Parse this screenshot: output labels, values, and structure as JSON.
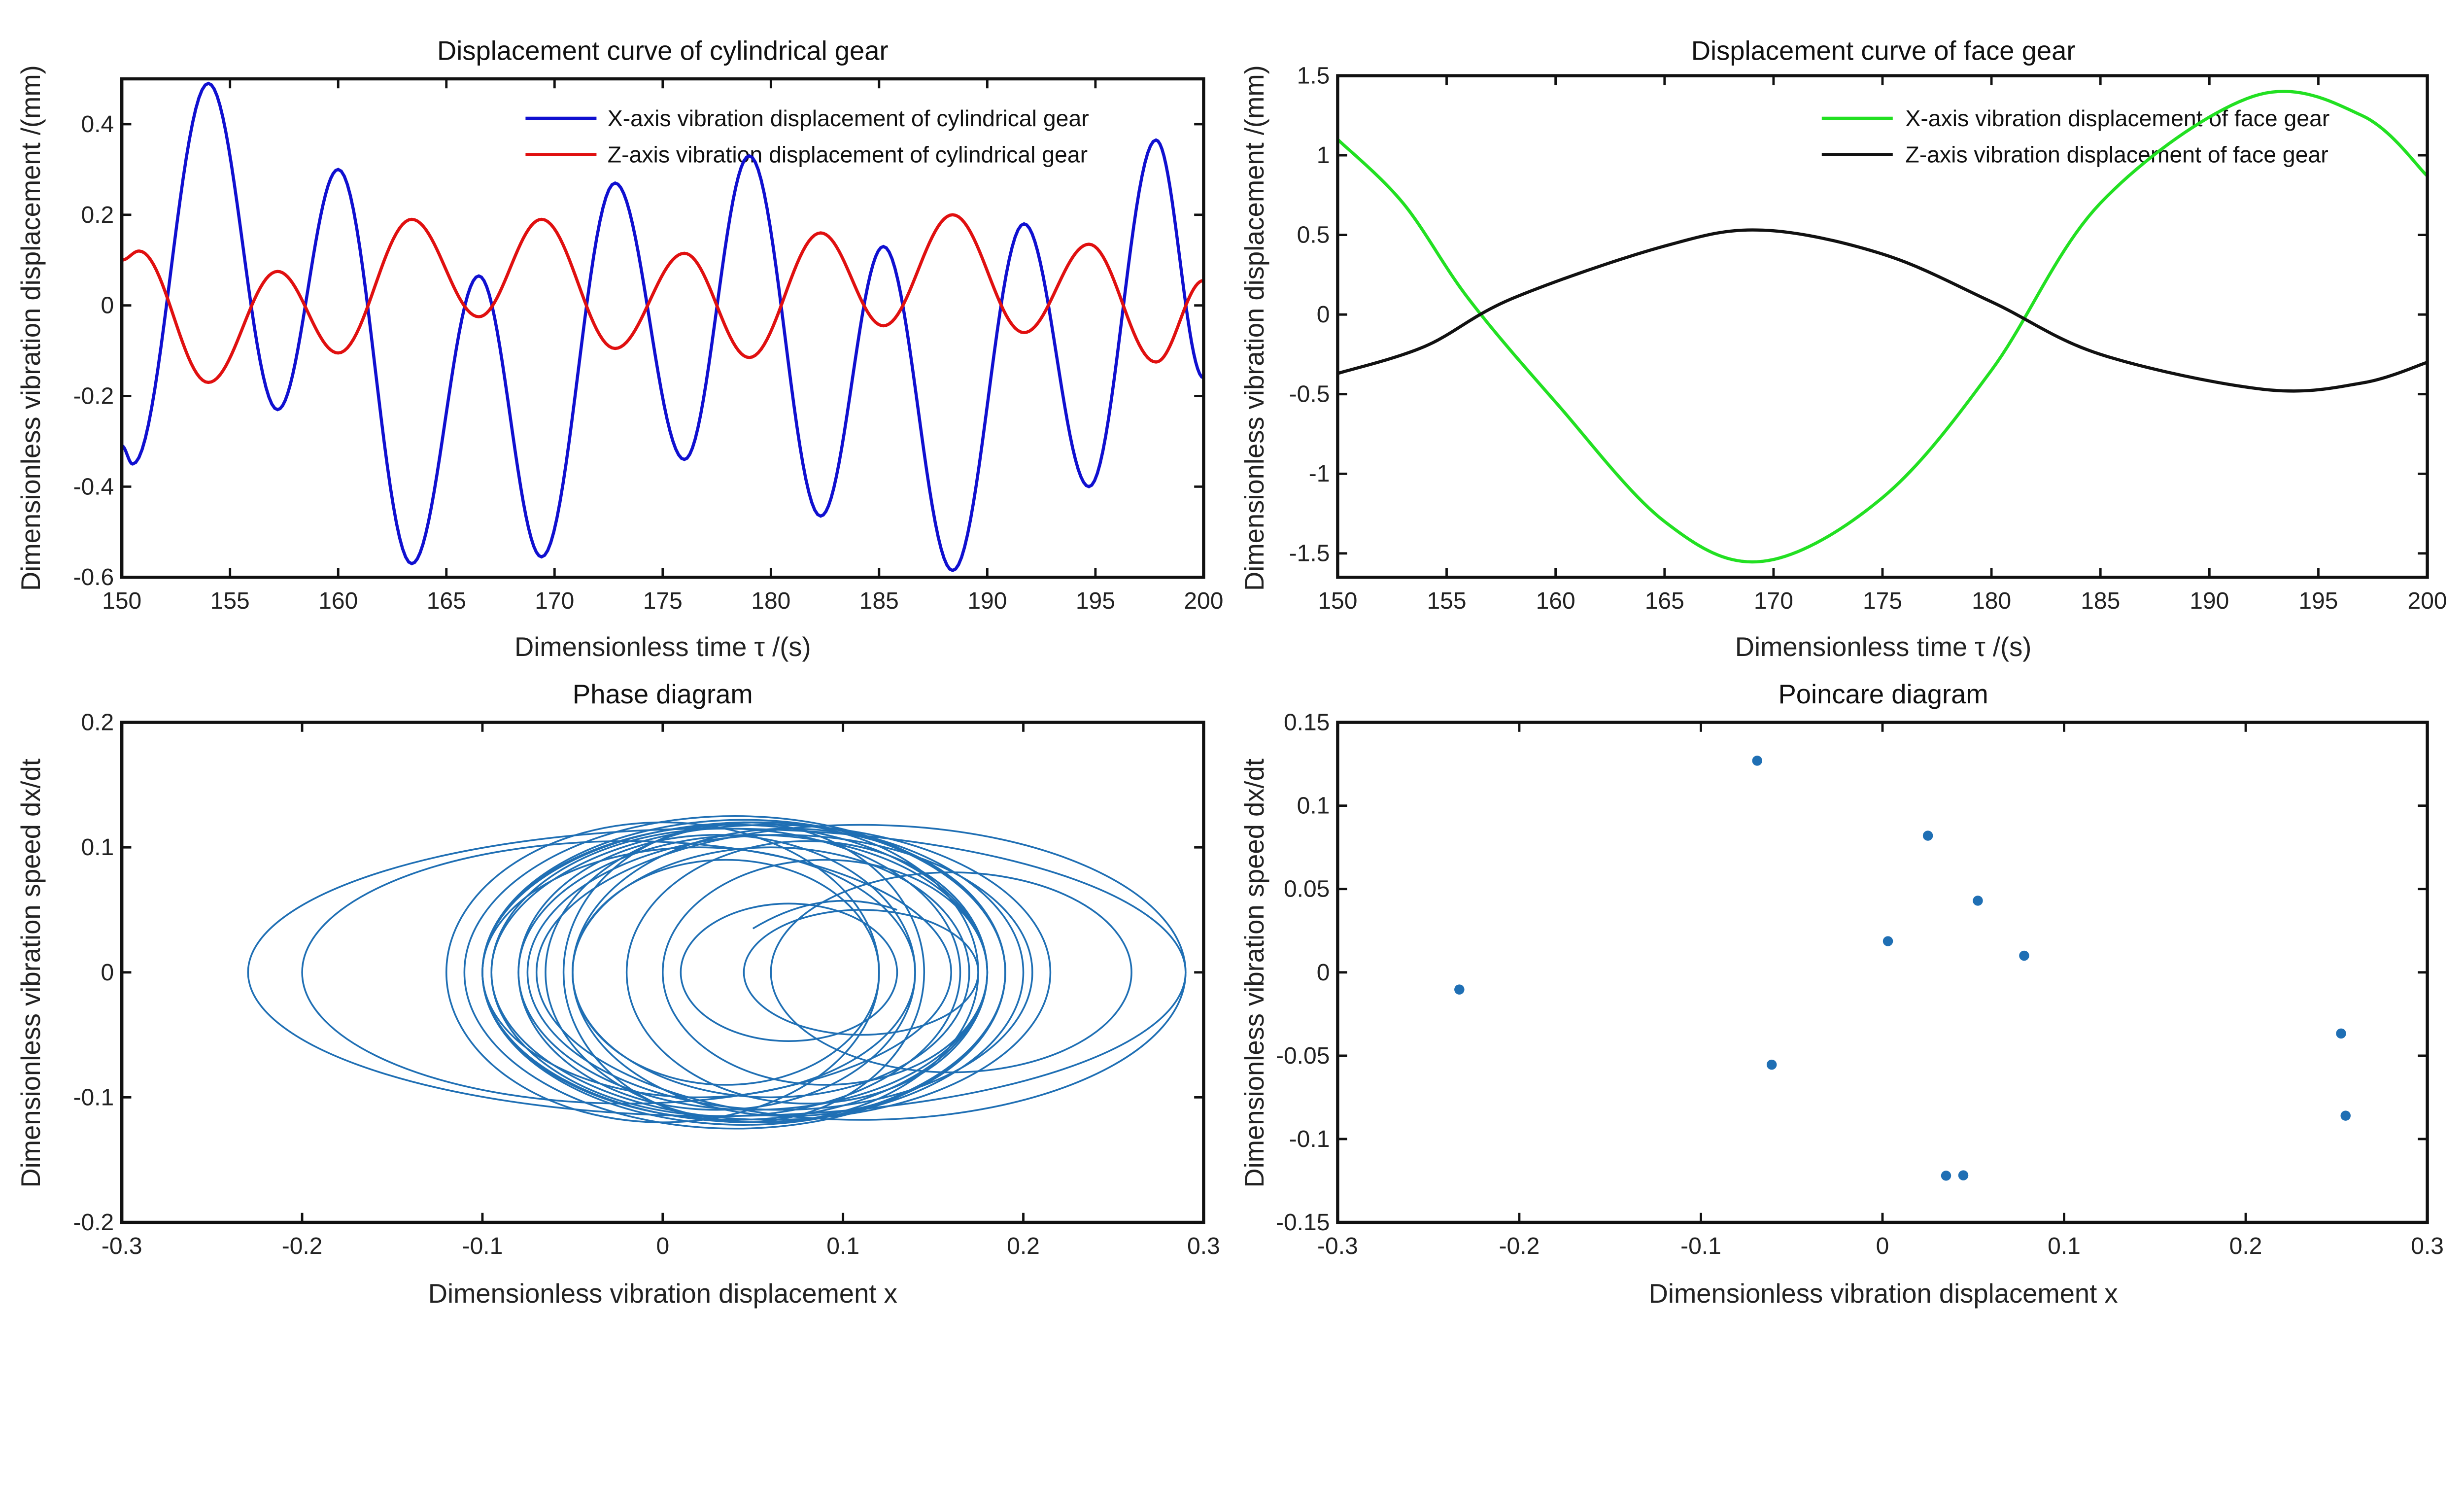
{
  "chart_data": [
    {
      "type": "line",
      "title": "Displacement curve of cylindrical gear",
      "xlabel": "Dimensionless time τ /(s)",
      "ylabel": "Dimensionless vibration displacement /(mm)",
      "xlim": [
        150,
        200
      ],
      "ylim": [
        -0.6,
        0.5
      ],
      "xticks": [
        150,
        155,
        160,
        165,
        170,
        175,
        180,
        185,
        190,
        195,
        200
      ],
      "yticks": [
        -0.6,
        -0.4,
        -0.2,
        0,
        0.2,
        0.4
      ],
      "grid": false,
      "legend_position": "top-right",
      "series": [
        {
          "name": "X-axis vibration displacement of cylindrical gear",
          "color": "#1010d0",
          "interp": "extrema",
          "x": [
            150,
            150.5,
            154,
            157.2,
            160,
            163.4,
            166.5,
            169.4,
            172.8,
            176,
            179,
            182.3,
            185.2,
            188.4,
            191.7,
            194.7,
            197.8,
            200
          ],
          "y": [
            -0.31,
            -0.35,
            0.49,
            -0.23,
            0.3,
            -0.57,
            0.065,
            -0.555,
            0.27,
            -0.34,
            0.33,
            -0.465,
            0.13,
            -0.585,
            0.18,
            -0.4,
            0.365,
            -0.16
          ]
        },
        {
          "name": "Z-axis vibration displacement of cylindrical gear",
          "color": "#e01010",
          "interp": "extrema",
          "x": [
            150,
            150.8,
            154,
            157.2,
            160,
            163.4,
            166.5,
            169.4,
            172.8,
            176,
            179,
            182.3,
            185.2,
            188.4,
            191.7,
            194.7,
            197.8,
            200
          ],
          "y": [
            0.1,
            0.12,
            -0.17,
            0.075,
            -0.105,
            0.19,
            -0.025,
            0.19,
            -0.095,
            0.115,
            -0.115,
            0.16,
            -0.045,
            0.2,
            -0.06,
            0.135,
            -0.125,
            0.055
          ]
        }
      ]
    },
    {
      "type": "line",
      "title": "Displacement curve of face gear",
      "xlabel": "Dimensionless time τ /(s)",
      "ylabel": "Dimensionless vibration displacement /(mm)",
      "xlim": [
        150,
        200
      ],
      "ylim": [
        -1.65,
        1.5
      ],
      "xticks": [
        150,
        155,
        160,
        165,
        170,
        175,
        180,
        185,
        190,
        195,
        200
      ],
      "yticks": [
        -1.5,
        -1,
        -0.5,
        0,
        0.5,
        1,
        1.5
      ],
      "grid": false,
      "legend_position": "top-right",
      "series": [
        {
          "name": "X-axis vibration displacement of face gear",
          "color": "#22e022",
          "interp": "smooth",
          "x": [
            150,
            153,
            156,
            160,
            165,
            169.5,
            175,
            180,
            185,
            192,
            197,
            200
          ],
          "y": [
            1.1,
            0.7,
            0.1,
            -0.55,
            -1.3,
            -1.55,
            -1.15,
            -0.35,
            0.7,
            1.37,
            1.25,
            0.87
          ]
        },
        {
          "name": "Z-axis vibration displacement of face gear",
          "color": "#111111",
          "interp": "smooth",
          "x": [
            150,
            154,
            158,
            165,
            169.5,
            175,
            180,
            185,
            192.5,
            197,
            200
          ],
          "y": [
            -0.37,
            -0.2,
            0.1,
            0.43,
            0.53,
            0.38,
            0.08,
            -0.25,
            -0.47,
            -0.43,
            -0.3
          ]
        }
      ]
    },
    {
      "type": "line",
      "title": "Phase diagram",
      "xlabel": "Dimensionless vibration displacement x",
      "ylabel": "Dimensionless vibration speed dx/dt",
      "xlim": [
        -0.3,
        0.3
      ],
      "ylim": [
        -0.2,
        0.2
      ],
      "xticks": [
        -0.3,
        -0.2,
        -0.1,
        0,
        0.1,
        0.2,
        0.3
      ],
      "yticks": [
        -0.2,
        -0.1,
        0,
        0.1,
        0.2
      ],
      "grid": false,
      "color": "#1f6fb4",
      "loops": [
        {
          "cx": 0.03,
          "ax": 0.26,
          "ay": 0.115
        },
        {
          "cx": 0.11,
          "ax": 0.18,
          "ay": 0.118
        },
        {
          "cx": -0.02,
          "ax": 0.18,
          "ay": 0.105
        },
        {
          "cx": 0.0,
          "ax": 0.12,
          "ay": 0.12
        },
        {
          "cx": 0.16,
          "ax": 0.1,
          "ay": 0.08
        },
        {
          "cx": 0.05,
          "ax": 0.15,
          "ay": 0.12
        },
        {
          "cx": 0.04,
          "ax": 0.14,
          "ay": 0.118
        },
        {
          "cx": 0.045,
          "ax": 0.145,
          "ay": 0.122
        },
        {
          "cx": 0.05,
          "ax": 0.13,
          "ay": 0.11
        },
        {
          "cx": 0.035,
          "ax": 0.13,
          "ay": 0.115
        },
        {
          "cx": 0.055,
          "ax": 0.12,
          "ay": 0.12
        },
        {
          "cx": 0.06,
          "ax": 0.11,
          "ay": 0.1
        },
        {
          "cx": 0.03,
          "ax": 0.11,
          "ay": 0.11
        },
        {
          "cx": 0.07,
          "ax": 0.12,
          "ay": 0.115
        },
        {
          "cx": 0.045,
          "ax": 0.1,
          "ay": 0.12
        },
        {
          "cx": 0.065,
          "ax": 0.14,
          "ay": 0.11
        },
        {
          "cx": 0.02,
          "ax": 0.12,
          "ay": 0.1
        },
        {
          "cx": 0.08,
          "ax": 0.1,
          "ay": 0.105
        },
        {
          "cx": 0.07,
          "ax": 0.06,
          "ay": 0.055
        },
        {
          "cx": 0.11,
          "ax": 0.065,
          "ay": 0.05
        },
        {
          "cx": 0.035,
          "ax": 0.085,
          "ay": 0.09
        },
        {
          "cx": 0.09,
          "ax": 0.09,
          "ay": 0.09
        },
        {
          "cx": 0.04,
          "ax": 0.15,
          "ay": 0.125
        },
        {
          "cx": 0.06,
          "ax": 0.155,
          "ay": 0.118
        }
      ]
    },
    {
      "type": "scatter",
      "title": "Poincare diagram",
      "xlabel": "Dimensionless vibration displacement x",
      "ylabel": "Dimensionless vibration speed dx/dt",
      "xlim": [
        -0.3,
        0.3
      ],
      "ylim": [
        -0.15,
        0.15
      ],
      "xticks": [
        -0.3,
        -0.2,
        -0.1,
        0,
        0.1,
        0.2,
        0.3
      ],
      "yticks": [
        -0.15,
        -0.1,
        -0.05,
        0,
        0.05,
        0.1,
        0.15
      ],
      "grid": false,
      "color": "#1f6fb4",
      "x": [
        -0.069,
        0.025,
        0.0525,
        0.003,
        0.078,
        -0.233,
        0.2525,
        -0.061,
        0.255,
        0.035,
        0.0445
      ],
      "y": [
        0.127,
        0.082,
        0.043,
        0.0187,
        0.01,
        -0.0103,
        -0.0367,
        -0.0554,
        -0.086,
        -0.122,
        -0.1218
      ]
    }
  ]
}
